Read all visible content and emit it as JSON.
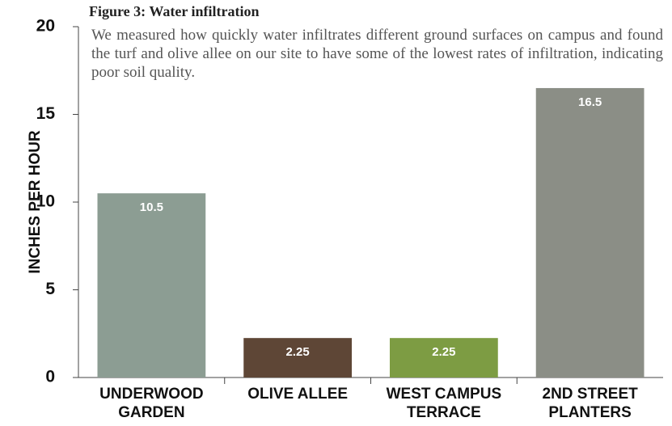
{
  "chart_data": {
    "type": "bar",
    "title": "Figure 3: Water infiltration",
    "subtitle": "We measured how quickly water infiltrates different ground surfaces on campus and found the turf and olive allee on our site to have some of the lowest rates of infiltration, indicating poor soil quality.",
    "y_label": "INCHES PER HOUR",
    "categories": [
      "UNDERWOOD GARDEN",
      "OLIVE ALLEE",
      "WEST CAMPUS TERRACE",
      "2ND STREET PLANTERS"
    ],
    "values": [
      10.5,
      2.25,
      2.25,
      16.5
    ],
    "colors": [
      "#8c9d93",
      "#5e4636",
      "#7d9c43",
      "#8b8e86"
    ],
    "ylim": [
      0,
      20
    ],
    "yticks": [
      0,
      5,
      10,
      15,
      20
    ]
  }
}
